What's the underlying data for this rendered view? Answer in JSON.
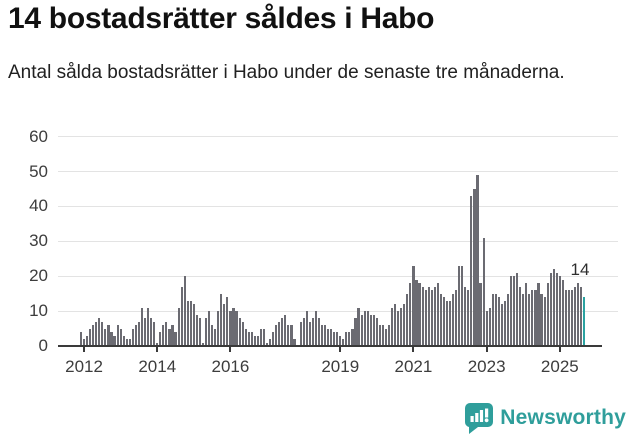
{
  "header": {
    "title": "14 bostadsrätter såldes i Habo",
    "subtitle": "Antal sålda bostadsrätter i Habo under de senaste tre månaderna."
  },
  "chart_data": {
    "type": "bar",
    "title": "14 bostadsrätter såldes i Habo",
    "description": "Antal sålda bostadsrätter i Habo under de senaste tre månaderna (rullande tremånadersvärden per månad).",
    "frequency": "monthly",
    "start_month": "2011-12",
    "end_month": "2025-09",
    "values": [
      4,
      2,
      3,
      5,
      6,
      7,
      8,
      7,
      5,
      6,
      4,
      3,
      6,
      5,
      3,
      2,
      2,
      5,
      6,
      7,
      11,
      8,
      11,
      8,
      7,
      1,
      4,
      6,
      7,
      5,
      6,
      4,
      11,
      17,
      20,
      13,
      13,
      12,
      9,
      8,
      1,
      8,
      10,
      6,
      5,
      10,
      15,
      12,
      14,
      10,
      11,
      10,
      8,
      7,
      5,
      4,
      4,
      3,
      3,
      5,
      5,
      1,
      2,
      4,
      6,
      7,
      8,
      9,
      6,
      6,
      2,
      0,
      7,
      8,
      10,
      7,
      8,
      10,
      8,
      6,
      6,
      5,
      5,
      4,
      4,
      3,
      2,
      4,
      4,
      5,
      8,
      11,
      9,
      10,
      10,
      9,
      9,
      8,
      6,
      6,
      5,
      6,
      11,
      12,
      10,
      11,
      12,
      15,
      18,
      23,
      19,
      18,
      17,
      16,
      17,
      16,
      17,
      18,
      15,
      14,
      13,
      13,
      15,
      16,
      23,
      23,
      17,
      16,
      43,
      45,
      49,
      18,
      31,
      10,
      11,
      15,
      15,
      14,
      12,
      13,
      15,
      20,
      20,
      21,
      17,
      15,
      18,
      15,
      16,
      16,
      18,
      15,
      14,
      18,
      21,
      22,
      21,
      20,
      19,
      16,
      16,
      16,
      17,
      18,
      17,
      14
    ],
    "highlight": {
      "index": 165,
      "value": 14,
      "label": "14",
      "color": "#2aa2a1"
    },
    "bar_color": "#6b6b72",
    "grid_color": "#e3e3e3",
    "axis_color": "#3a3a3a",
    "ylim": [
      0,
      60
    ],
    "y_ticks": [
      0,
      10,
      20,
      30,
      40,
      50,
      60
    ],
    "x_ticks": [
      {
        "index": 1,
        "label": "2012"
      },
      {
        "index": 25,
        "label": "2014"
      },
      {
        "index": 49,
        "label": "2016"
      },
      {
        "index": 85,
        "label": "2019"
      },
      {
        "index": 109,
        "label": "2021"
      },
      {
        "index": 133,
        "label": "2023"
      },
      {
        "index": 157,
        "label": "2025"
      }
    ],
    "legend": null,
    "grid": "horizontal"
  },
  "footer": {
    "brand": "Newsworthy",
    "brand_color": "#2f9e9b",
    "icon": "newsworthy-logo-icon"
  }
}
